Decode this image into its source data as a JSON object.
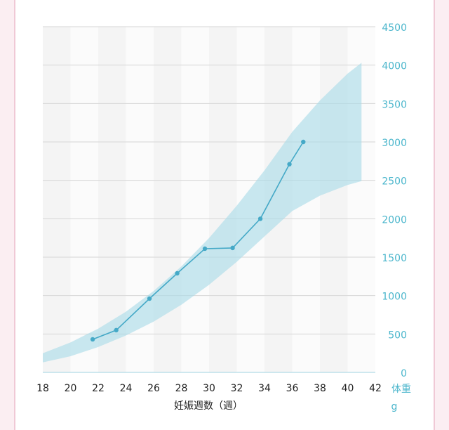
{
  "chart_data": {
    "type": "line",
    "xlabel": "妊娠週数（週）",
    "ylabel": "体重",
    "ylabel_unit": "g",
    "xlim": [
      18,
      42
    ],
    "ylim": [
      0,
      4500
    ],
    "x_ticks": [
      "18",
      "20",
      "22",
      "24",
      "26",
      "28",
      "30",
      "32",
      "34",
      "36",
      "38",
      "40",
      "42"
    ],
    "y_ticks": [
      "0",
      "500",
      "1000",
      "1500",
      "2000",
      "2500",
      "3000",
      "3500",
      "4000",
      "4500"
    ],
    "grid": true,
    "series": [
      {
        "x": [
          21.6,
          23.3,
          25.7,
          27.7,
          29.7,
          31.7,
          33.7,
          35.8,
          36.8
        ],
        "y": [
          430,
          550,
          960,
          1290,
          1610,
          1620,
          2000,
          2710,
          3000
        ]
      }
    ],
    "reference_band": {
      "x": [
        18,
        20,
        22,
        24,
        26,
        28,
        30,
        32,
        34,
        36,
        38,
        40,
        41
      ],
      "upper": [
        250,
        390,
        570,
        790,
        1060,
        1380,
        1750,
        2170,
        2630,
        3130,
        3540,
        3890,
        4030
      ],
      "lower": [
        130,
        210,
        330,
        480,
        660,
        880,
        1140,
        1440,
        1770,
        2100,
        2300,
        2440,
        2490
      ]
    },
    "colors": {
      "line": "#45a9c7",
      "band": "#a6dbe7",
      "y_tick": "#4bb6cc",
      "x_tick": "#222222",
      "stripe_a": "#f4f4f4",
      "stripe_b": "#fbfbfb",
      "gridline": "#d6d6d6"
    }
  }
}
